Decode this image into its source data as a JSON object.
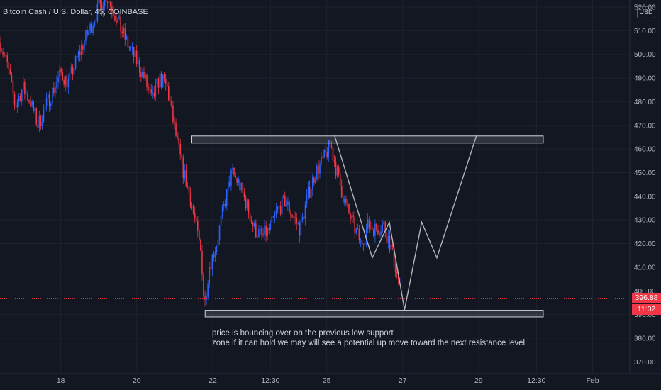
{
  "chart_data": {
    "type": "candlestick",
    "title": "Bitcoin Cash / U.S. Dollar, 45, COINBASE",
    "currency": "USD",
    "y_ticks": [
      "370.00",
      "380.00",
      "390.00",
      "400.00",
      "410.00",
      "420.00",
      "430.00",
      "440.00",
      "450.00",
      "460.00",
      "470.00",
      "480.00",
      "490.00",
      "500.00",
      "510.00",
      "520.00"
    ],
    "ylim": [
      365,
      523
    ],
    "x_ticks": [
      {
        "label": "18",
        "day": 18
      },
      {
        "label": "20",
        "day": 20
      },
      {
        "label": "22",
        "day": 22
      },
      {
        "label": "12:30",
        "day": 23.52
      },
      {
        "label": "25",
        "day": 25
      },
      {
        "label": "27",
        "day": 27
      },
      {
        "label": "29",
        "day": 29
      },
      {
        "label": "12:30",
        "day": 30.52
      },
      {
        "label": "Feb",
        "day": 32
      }
    ],
    "xlim": [
      16.4,
      33.8
    ],
    "price_path": [
      [
        16.4,
        505
      ],
      [
        16.6,
        495
      ],
      [
        16.8,
        478
      ],
      [
        17.0,
        486
      ],
      [
        17.2,
        480
      ],
      [
        17.4,
        470
      ],
      [
        17.6,
        478
      ],
      [
        17.8,
        485
      ],
      [
        18.0,
        492
      ],
      [
        18.2,
        488
      ],
      [
        18.4,
        497
      ],
      [
        18.6,
        505
      ],
      [
        18.8,
        512
      ],
      [
        19.0,
        520
      ],
      [
        19.2,
        525
      ],
      [
        19.4,
        518
      ],
      [
        19.6,
        510
      ],
      [
        19.8,
        503
      ],
      [
        20.0,
        497
      ],
      [
        20.2,
        490
      ],
      [
        20.4,
        480
      ],
      [
        20.6,
        490
      ],
      [
        20.8,
        486
      ],
      [
        21.0,
        468
      ],
      [
        21.2,
        452
      ],
      [
        21.4,
        440
      ],
      [
        21.55,
        428
      ],
      [
        21.7,
        415
      ],
      [
        21.78,
        393
      ],
      [
        21.9,
        410
      ],
      [
        22.1,
        420
      ],
      [
        22.3,
        436
      ],
      [
        22.5,
        450
      ],
      [
        22.7,
        445
      ],
      [
        22.9,
        436
      ],
      [
        23.1,
        426
      ],
      [
        23.3,
        423
      ],
      [
        23.5,
        426
      ],
      [
        23.7,
        434
      ],
      [
        23.9,
        438
      ],
      [
        24.1,
        432
      ],
      [
        24.3,
        426
      ],
      [
        24.5,
        440
      ],
      [
        24.7,
        450
      ],
      [
        24.9,
        455
      ],
      [
        25.1,
        462
      ],
      [
        25.3,
        448
      ],
      [
        25.5,
        436
      ],
      [
        25.7,
        428
      ],
      [
        25.9,
        420
      ],
      [
        26.1,
        428
      ],
      [
        26.3,
        426
      ],
      [
        26.5,
        428
      ],
      [
        26.7,
        418
      ],
      [
        26.95,
        400
      ]
    ],
    "current_price": "396.88",
    "current_price_value": 396.88,
    "countdown": "11:02",
    "zones": [
      {
        "x1": 21.45,
        "x2": 30.7,
        "y1": 465.5,
        "y2": 462.5
      },
      {
        "x1": 21.8,
        "x2": 30.7,
        "y1": 391.8,
        "y2": 389.0
      }
    ],
    "projection_path": [
      [
        25.2,
        466
      ],
      [
        26.2,
        414
      ],
      [
        26.65,
        429
      ],
      [
        27.05,
        392
      ],
      [
        27.5,
        429
      ],
      [
        27.9,
        414
      ],
      [
        28.95,
        466
      ]
    ],
    "annotation": [
      "price is bouncing over on the previous low support",
      "zone if it can hold we may will see a potential up move toward the next resistance level"
    ],
    "colors": {
      "up": "#2962ff",
      "down": "#f23645",
      "background": "#131722",
      "grid": "#1e222d",
      "line": "#b2b5be"
    }
  }
}
